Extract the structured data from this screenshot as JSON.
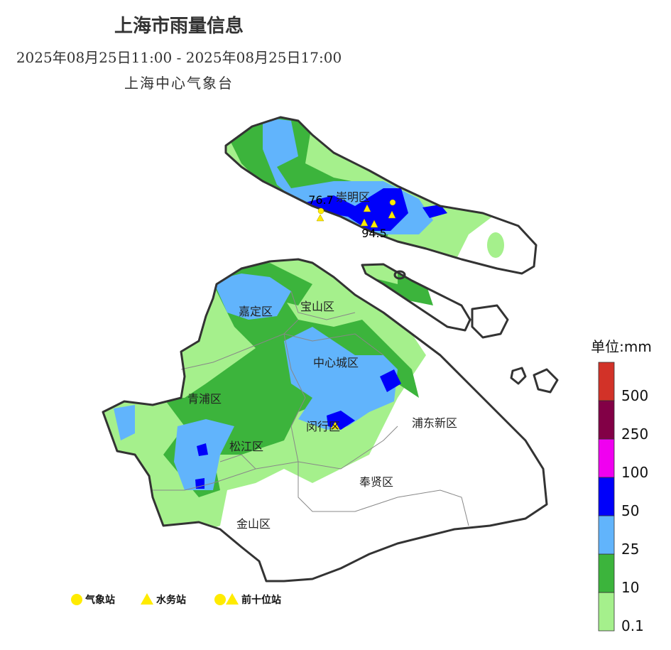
{
  "header": {
    "title": "上海市雨量信息",
    "period": "2025年08月25日11:00 - 2025年08月25日17:00",
    "source": "上海中心气象台"
  },
  "districts": [
    "崇明区",
    "嘉定区",
    "宝山区",
    "中心城区",
    "青浦区",
    "闵行区",
    "浦东新区",
    "松江区",
    "奉贤区",
    "金山区"
  ],
  "top_values": [
    76.7,
    94.5
  ],
  "station_legend": [
    "气象站",
    "水务站",
    "前十位站"
  ],
  "rain_legend": {
    "title": "单位:mm",
    "ticks": [
      0.1,
      10,
      25,
      50,
      100,
      250,
      500
    ],
    "colors": [
      "#a5f08c",
      "#3cb43c",
      "#61b4fc",
      "#0000fa",
      "#f000f0",
      "#820046",
      "#d23228"
    ]
  }
}
